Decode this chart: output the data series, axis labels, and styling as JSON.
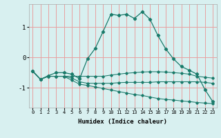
{
  "xlabel": "Humidex (Indice chaleur)",
  "background_color": "#d8f0f0",
  "grid_color": "#e8a0a0",
  "line_color": "#1a7a6a",
  "xlim": [
    -0.5,
    23.5
  ],
  "ylim": [
    -1.65,
    1.75
  ],
  "yticks": [
    -1,
    0,
    1
  ],
  "xticks": [
    0,
    1,
    2,
    3,
    4,
    5,
    6,
    7,
    8,
    9,
    10,
    11,
    12,
    13,
    14,
    15,
    16,
    17,
    18,
    19,
    20,
    21,
    22,
    23
  ],
  "line1_x": [
    0,
    1,
    2,
    3,
    4,
    5,
    6,
    7,
    8,
    9,
    10,
    11,
    12,
    13,
    14,
    15,
    16,
    17,
    18,
    19,
    20,
    21,
    22,
    23
  ],
  "line1_y": [
    -0.45,
    -0.72,
    -0.6,
    -0.5,
    -0.5,
    -0.55,
    -0.7,
    -0.05,
    0.3,
    0.85,
    1.42,
    1.38,
    1.42,
    1.28,
    1.5,
    1.25,
    0.72,
    0.28,
    -0.05,
    -0.3,
    -0.42,
    -0.55,
    -1.05,
    -1.45
  ],
  "line2_x": [
    0,
    1,
    2,
    3,
    4,
    5,
    6,
    7,
    8,
    9,
    10,
    11,
    12,
    13,
    14,
    15,
    16,
    17,
    18,
    19,
    20,
    21,
    22,
    23
  ],
  "line2_y": [
    -0.45,
    -0.72,
    -0.62,
    -0.62,
    -0.62,
    -0.62,
    -0.62,
    -0.62,
    -0.62,
    -0.62,
    -0.58,
    -0.55,
    -0.52,
    -0.5,
    -0.48,
    -0.47,
    -0.47,
    -0.48,
    -0.5,
    -0.52,
    -0.55,
    -0.62,
    -0.65,
    -0.68
  ],
  "line3_x": [
    0,
    1,
    2,
    3,
    4,
    5,
    6,
    7,
    8,
    9,
    10,
    11,
    12,
    13,
    14,
    15,
    16,
    17,
    18,
    19,
    20,
    21,
    22,
    23
  ],
  "line3_y": [
    -0.45,
    -0.72,
    -0.62,
    -0.62,
    -0.62,
    -0.75,
    -0.88,
    -0.92,
    -0.97,
    -1.02,
    -1.07,
    -1.12,
    -1.17,
    -1.22,
    -1.25,
    -1.3,
    -1.35,
    -1.38,
    -1.4,
    -1.43,
    -1.45,
    -1.48,
    -1.5,
    -1.52
  ],
  "line4_x": [
    0,
    1,
    2,
    3,
    4,
    5,
    6,
    7,
    8,
    9,
    10,
    11,
    12,
    13,
    14,
    15,
    16,
    17,
    18,
    19,
    20,
    21,
    22,
    23
  ],
  "line4_y": [
    -0.45,
    -0.72,
    -0.62,
    -0.62,
    -0.62,
    -0.68,
    -0.8,
    -0.85,
    -0.85,
    -0.85,
    -0.85,
    -0.83,
    -0.82,
    -0.82,
    -0.82,
    -0.82,
    -0.8,
    -0.8,
    -0.8,
    -0.8,
    -0.8,
    -0.8,
    -0.82,
    -0.85
  ]
}
